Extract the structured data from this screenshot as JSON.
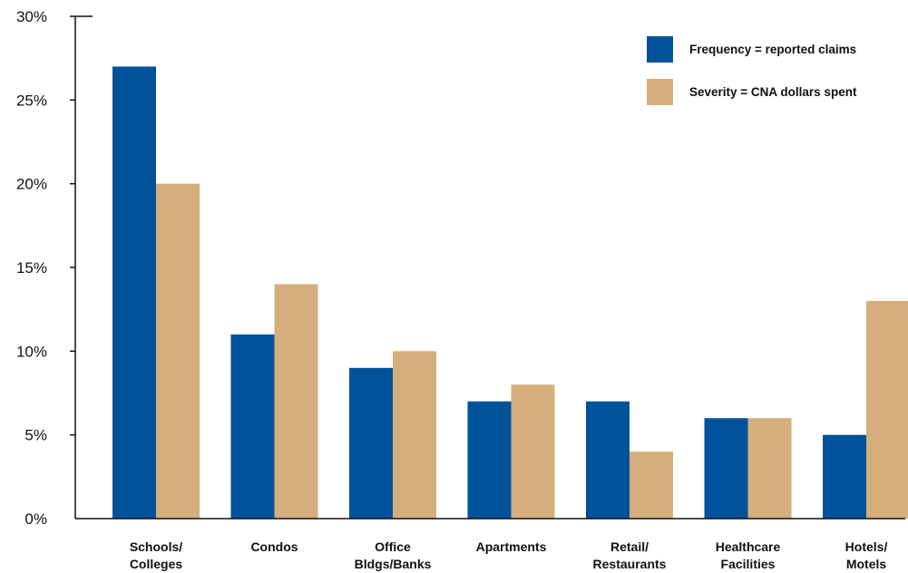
{
  "chart_data": {
    "type": "bar",
    "categories": [
      [
        "Schools/",
        "Colleges"
      ],
      [
        "Condos"
      ],
      [
        "Office",
        "Bldgs/Banks"
      ],
      [
        "Apartments"
      ],
      [
        "Retail/",
        "Restaurants"
      ],
      [
        "Healthcare",
        "Facilities"
      ],
      [
        "Hotels/",
        "Motels"
      ]
    ],
    "series": [
      {
        "name": "Frequency = reported claims",
        "color": "#00539b",
        "values": [
          27,
          11,
          9,
          7,
          7,
          6,
          5
        ]
      },
      {
        "name": "Severity = CNA dollars spent",
        "color": "#d4ae7c",
        "values": [
          20,
          14,
          10,
          8,
          4,
          6,
          13
        ]
      }
    ],
    "y_ticks": [
      "0%",
      "5%",
      "10%",
      "15%",
      "20%",
      "25%",
      "30%"
    ],
    "ylim": [
      0,
      30
    ],
    "grid": false,
    "legend_position": "top-right",
    "title": "",
    "xlabel": "",
    "ylabel": ""
  }
}
